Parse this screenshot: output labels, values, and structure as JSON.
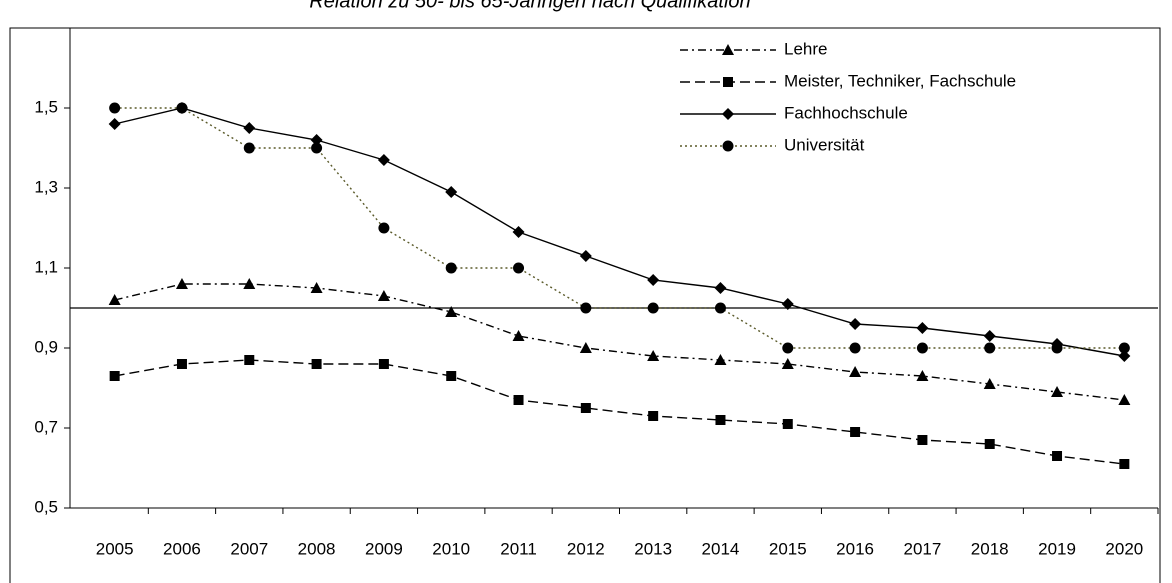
{
  "chart_data": {
    "type": "line",
    "title": "Relation zu 50- bis 65-Jährigen nach Qualifikation",
    "categories": [
      "2005",
      "2006",
      "2007",
      "2008",
      "2009",
      "2010",
      "2011",
      "2012",
      "2013",
      "2014",
      "2015",
      "2016",
      "2017",
      "2018",
      "2019",
      "2020"
    ],
    "series": [
      {
        "name": "Lehre",
        "color": "#000000",
        "dash": "dashdot",
        "marker": "triangle",
        "values": [
          1.02,
          1.06,
          1.06,
          1.05,
          1.03,
          0.99,
          0.93,
          0.9,
          0.88,
          0.87,
          0.86,
          0.84,
          0.83,
          0.81,
          0.79,
          0.77
        ]
      },
      {
        "name": "Meister, Techniker, Fachschule",
        "color": "#000000",
        "dash": "dashed",
        "marker": "square",
        "values": [
          0.83,
          0.86,
          0.87,
          0.86,
          0.86,
          0.83,
          0.77,
          0.75,
          0.73,
          0.72,
          0.71,
          0.69,
          0.67,
          0.66,
          0.63,
          0.61
        ]
      },
      {
        "name": "Fachhochschule",
        "color": "#000000",
        "dash": "solid",
        "marker": "diamond",
        "values": [
          1.46,
          1.5,
          1.45,
          1.42,
          1.37,
          1.29,
          1.19,
          1.13,
          1.07,
          1.05,
          1.01,
          0.96,
          0.95,
          0.93,
          0.91,
          0.88
        ]
      },
      {
        "name": "Universität",
        "color": "#000000",
        "line_color": "#5a5a2a",
        "dash": "dotted",
        "marker": "circle",
        "values": [
          1.5,
          1.5,
          1.4,
          1.4,
          1.2,
          1.1,
          1.1,
          1.0,
          1.0,
          1.0,
          0.9,
          0.9,
          0.9,
          0.9,
          0.9,
          0.9
        ]
      }
    ],
    "reference_line": 1,
    "ylim": [
      0.5,
      1.7
    ],
    "yticks": [
      {
        "value": 0.5,
        "label": "0,5"
      },
      {
        "value": 0.7,
        "label": "0,7"
      },
      {
        "value": 0.9,
        "label": "0,9"
      },
      {
        "value": 1.1,
        "label": "1,1"
      },
      {
        "value": 1.3,
        "label": "1,3"
      },
      {
        "value": 1.5,
        "label": "1,5"
      }
    ],
    "grid": false,
    "legend": "top-right"
  }
}
